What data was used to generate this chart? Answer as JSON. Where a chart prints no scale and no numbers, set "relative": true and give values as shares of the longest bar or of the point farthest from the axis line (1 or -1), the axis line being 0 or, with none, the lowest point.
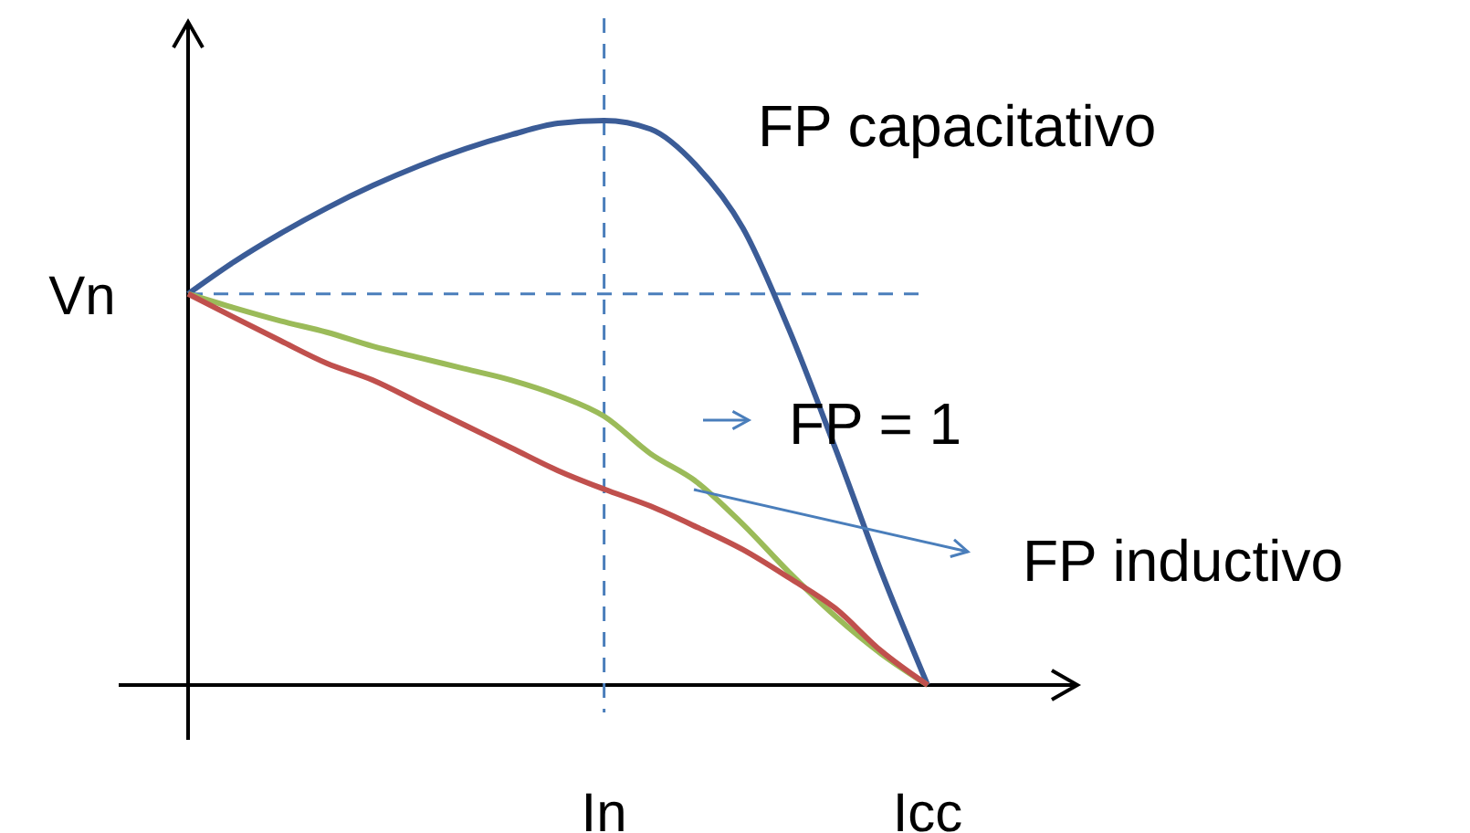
{
  "chart_data": {
    "type": "line",
    "relative": true,
    "categories": [
      null,
      null,
      null,
      null,
      null,
      null,
      null,
      null,
      null,
      "In",
      null,
      null,
      null,
      null,
      null,
      null,
      "Icc"
    ],
    "series": [
      {
        "color": "#3b5c97",
        "values": [
          0.693,
          0.75,
          0.8,
          0.845,
          0.885,
          0.92,
          0.95,
          0.975,
          0.995,
          1,
          0.985,
          0.92,
          0.81,
          0.63,
          0.42,
          0.2,
          0
        ]
      },
      {
        "color": "#9bbb59",
        "values": [
          0.693,
          0.668,
          0.645,
          0.625,
          0.6,
          0.58,
          0.56,
          0.54,
          0.513,
          0.476,
          0.41,
          0.36,
          0.285,
          0.2,
          0.122,
          0.055,
          0
        ]
      },
      {
        "color": "#c0504d",
        "values": [
          0.693,
          0.651,
          0.61,
          0.57,
          0.54,
          0.5,
          0.46,
          0.42,
          0.38,
          0.347,
          0.317,
          0.28,
          0.24,
          0.19,
          0.136,
          0.06,
          0
        ]
      }
    ],
    "ref_lines": [
      {
        "axis": "x",
        "value": "In",
        "color": "#4a7ebb",
        "line_style": "dashed"
      },
      {
        "axis": "y",
        "value": 0.693,
        "label": "Vn",
        "color": "#4a7ebb",
        "line_style": "dashed"
      }
    ],
    "annotations": [
      "FP capacitativo",
      "FP = 1",
      "FP inductivo"
    ],
    "marker": "none",
    "line_style": "solid"
  }
}
